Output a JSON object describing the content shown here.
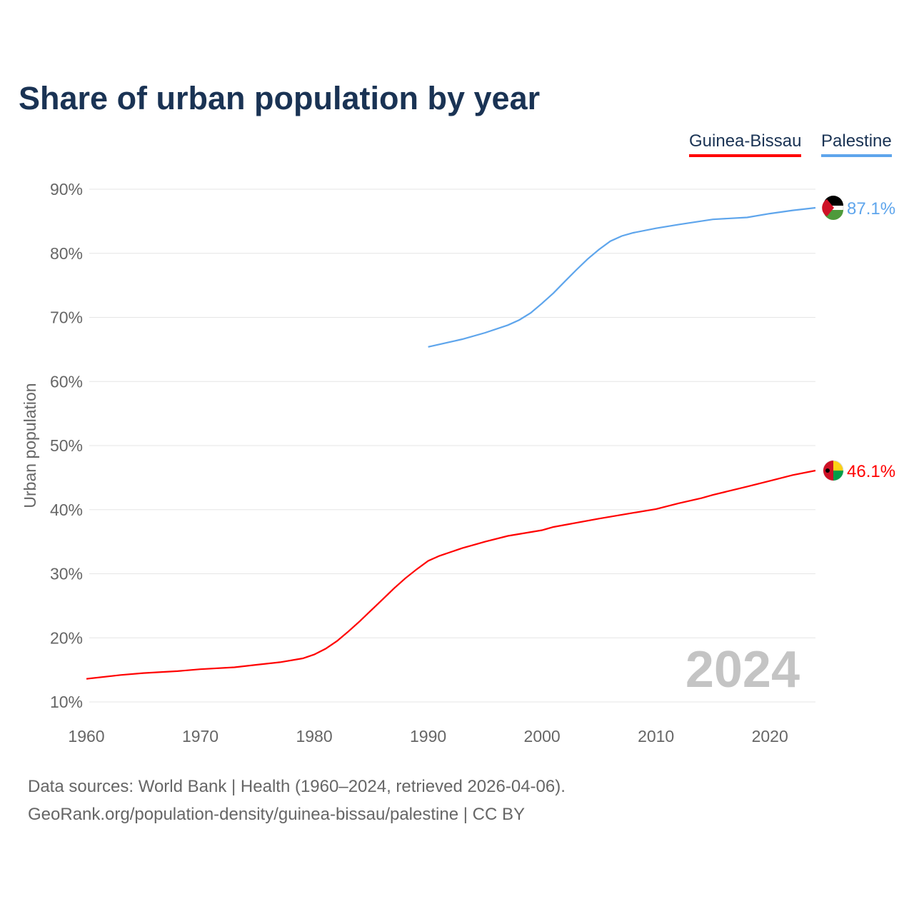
{
  "chart_data": {
    "type": "line",
    "title": "Share of urban population by year",
    "xlabel": "",
    "ylabel": "Urban population",
    "xlim": [
      1960,
      2024
    ],
    "ylim": [
      10,
      90
    ],
    "x_ticks": [
      "1960",
      "1970",
      "1980",
      "1990",
      "2000",
      "2010",
      "2020"
    ],
    "y_ticks": [
      "10%",
      "20%",
      "30%",
      "40%",
      "50%",
      "60%",
      "70%",
      "80%",
      "90%"
    ],
    "grid": true,
    "legend_placement": "top-right",
    "year_watermark": "2024",
    "series": [
      {
        "name": "Guinea-Bissau",
        "color": "#ff0000",
        "end_label": "46.1%",
        "x": [
          1960,
          1963,
          1965,
          1968,
          1970,
          1973,
          1975,
          1977,
          1979,
          1980,
          1981,
          1982,
          1983,
          1984,
          1985,
          1986,
          1987,
          1988,
          1989,
          1990,
          1991,
          1992,
          1993,
          1995,
          1997,
          2000,
          2001,
          2005,
          2008,
          2010,
          2012,
          2014,
          2015,
          2018,
          2020,
          2022,
          2024
        ],
        "values": [
          13.6,
          14.2,
          14.5,
          14.8,
          15.1,
          15.4,
          15.8,
          16.2,
          16.8,
          17.4,
          18.3,
          19.5,
          21,
          22.6,
          24.3,
          26,
          27.7,
          29.3,
          30.7,
          32,
          32.8,
          33.4,
          34,
          35,
          35.9,
          36.8,
          37.3,
          38.6,
          39.5,
          40.1,
          41,
          41.8,
          42.3,
          43.6,
          44.5,
          45.4,
          46.1
        ]
      },
      {
        "name": "Palestine",
        "color": "#5ea5ec",
        "end_label": "87.1%",
        "x": [
          1990,
          1993,
          1995,
          1997,
          1998,
          1999,
          2000,
          2001,
          2002,
          2003,
          2004,
          2005,
          2006,
          2007,
          2008,
          2010,
          2012,
          2015,
          2018,
          2020,
          2022,
          2024
        ],
        "values": [
          65.4,
          66.6,
          67.6,
          68.8,
          69.6,
          70.7,
          72.2,
          73.8,
          75.6,
          77.4,
          79.1,
          80.6,
          81.9,
          82.7,
          83.2,
          83.9,
          84.5,
          85.3,
          85.6,
          86.2,
          86.7,
          87.1
        ]
      }
    ]
  },
  "legend": {
    "guinea_bissau": "Guinea-Bissau",
    "palestine": "Palestine"
  },
  "footer": {
    "sources": "Data sources: World Bank | Health (1960–2024, retrieved 2026-04-06).",
    "credit": "GeoRank.org/population-density/guinea-bissau/palestine | CC BY"
  }
}
